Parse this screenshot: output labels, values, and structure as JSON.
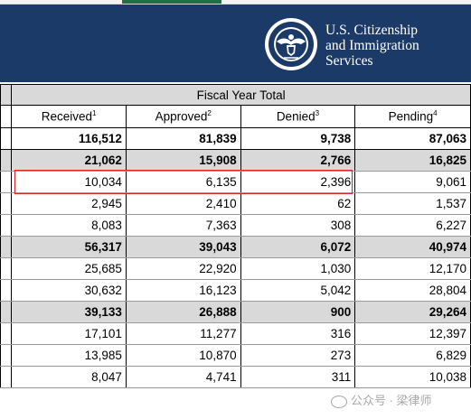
{
  "agency": {
    "name_lines": [
      "U.S. Citizenship",
      "and Immigration",
      "Services"
    ],
    "seal_lettering": "U.S. DEPARTMENT OF HOMELAND SECURITY"
  },
  "table": {
    "group_header": "Fiscal Year Total",
    "columns": [
      {
        "label": "Received",
        "note": "1"
      },
      {
        "label": "Approved",
        "note": "2"
      },
      {
        "label": "Denied",
        "note": "3"
      },
      {
        "label": "Pending",
        "note": "4"
      }
    ],
    "rows": [
      {
        "values": [
          "116,512",
          "81,839",
          "9,738",
          "87,063"
        ],
        "style": "total"
      },
      {
        "values": [
          "21,062",
          "15,908",
          "2,766",
          "16,825"
        ],
        "style": "shade"
      },
      {
        "values": [
          "10,034",
          "6,135",
          "2,396",
          "9,061"
        ],
        "style": "normal",
        "highlighted": true
      },
      {
        "values": [
          "2,945",
          "2,410",
          "62",
          "1,537"
        ],
        "style": "normal"
      },
      {
        "values": [
          "8,083",
          "7,363",
          "308",
          "6,227"
        ],
        "style": "normal"
      },
      {
        "values": [
          "56,317",
          "39,043",
          "6,072",
          "40,974"
        ],
        "style": "shade"
      },
      {
        "values": [
          "25,685",
          "22,920",
          "1,030",
          "12,170"
        ],
        "style": "normal"
      },
      {
        "values": [
          "30,632",
          "16,123",
          "5,042",
          "28,804"
        ],
        "style": "normal"
      },
      {
        "values": [
          "39,133",
          "26,888",
          "900",
          "29,264"
        ],
        "style": "shade"
      },
      {
        "values": [
          "17,101",
          "11,277",
          "316",
          "12,397"
        ],
        "style": "normal"
      },
      {
        "values": [
          "13,985",
          "10,870",
          "273",
          "6,829"
        ],
        "style": "normal"
      },
      {
        "values": [
          "8,047",
          "4,741",
          "311",
          "10,038"
        ],
        "style": "normal"
      }
    ]
  },
  "highlight_color": "#d42727",
  "banner_color": "#1c3a68",
  "watermark": "公众号 · 梁律师"
}
